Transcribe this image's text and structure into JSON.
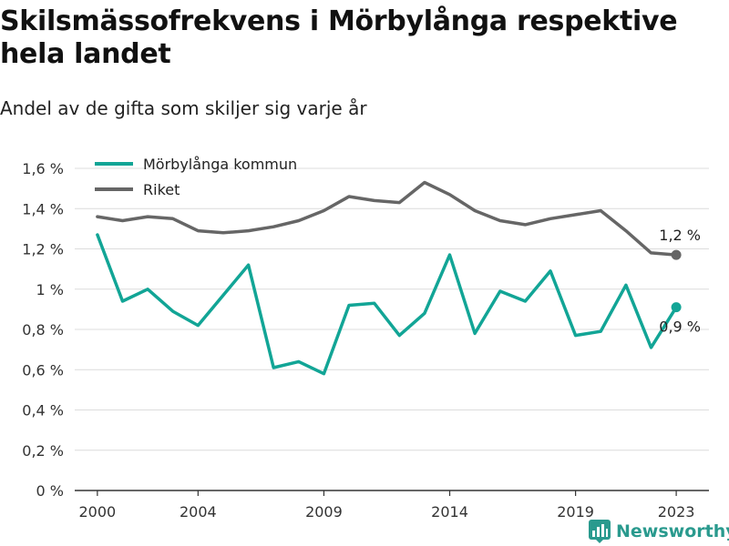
{
  "title": "Skilsmässofrekvens i Mörbylånga respektive hela landet",
  "subtitle": "Andel av de gifta som skiljer sig varje år",
  "brand": {
    "name": "Newsworthy",
    "icon": "bar-chart-icon",
    "color": "#2a9a8e"
  },
  "chart_data": {
    "type": "line",
    "x": [
      2000,
      2001,
      2002,
      2003,
      2004,
      2005,
      2006,
      2007,
      2008,
      2009,
      2010,
      2011,
      2012,
      2013,
      2014,
      2015,
      2016,
      2017,
      2018,
      2019,
      2020,
      2021,
      2022,
      2023
    ],
    "series": [
      {
        "name": "Mörbylånga kommun",
        "color": "#12a596",
        "values": [
          1.27,
          0.94,
          1.0,
          0.89,
          0.82,
          0.97,
          1.12,
          0.61,
          0.64,
          0.58,
          0.92,
          0.93,
          0.77,
          0.88,
          1.17,
          0.78,
          0.99,
          0.94,
          1.09,
          0.77,
          0.79,
          1.02,
          0.71,
          0.91
        ],
        "end_label": "0,9 %"
      },
      {
        "name": "Riket",
        "color": "#666666",
        "values": [
          1.36,
          1.34,
          1.36,
          1.35,
          1.29,
          1.28,
          1.29,
          1.31,
          1.34,
          1.39,
          1.46,
          1.44,
          1.43,
          1.53,
          1.47,
          1.39,
          1.34,
          1.32,
          1.35,
          1.37,
          1.39,
          1.29,
          1.18,
          1.17
        ],
        "end_label": "1,2 %"
      }
    ],
    "xticks": [
      2000,
      2004,
      2009,
      2014,
      2019,
      2023
    ],
    "xtick_labels": [
      "2000",
      "2004",
      "2009",
      "2014",
      "2019",
      "2023"
    ],
    "yticks": [
      0,
      0.2,
      0.4,
      0.6,
      0.8,
      1.0,
      1.2,
      1.4,
      1.6
    ],
    "ytick_labels": [
      "0 %",
      "0,2 %",
      "0,4 %",
      "0,6 %",
      "0,8 %",
      "1 %",
      "1,2 %",
      "1,4 %",
      "1,6 %"
    ],
    "ylim": [
      0,
      1.6
    ],
    "xlim": [
      1999.1,
      2024.3
    ],
    "grid": true,
    "legend_position": "top-left"
  }
}
